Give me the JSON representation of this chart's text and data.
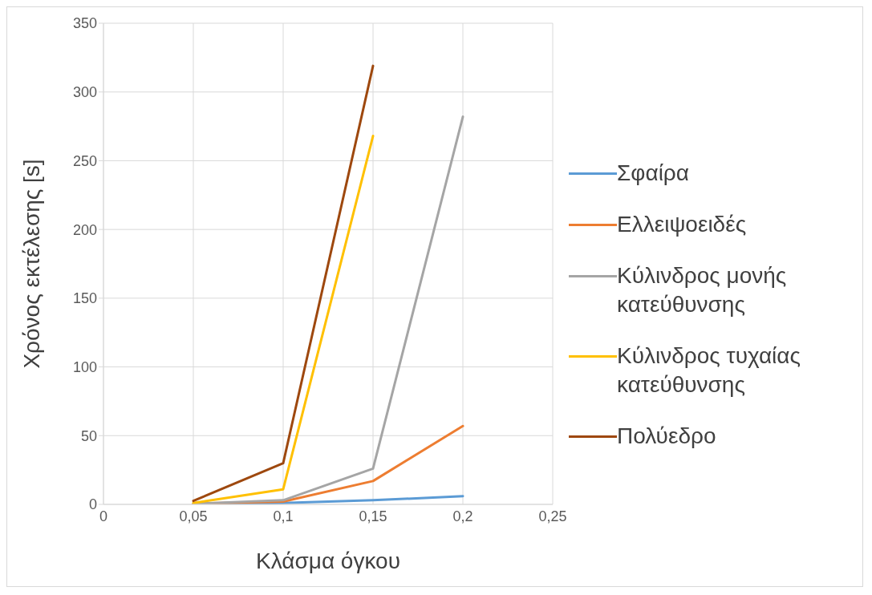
{
  "chart_data": {
    "type": "line",
    "xlabel": "Κλάσμα όγκου",
    "ylabel": "Χρόνος εκτέλεσης [s]",
    "x": [
      0.05,
      0.1,
      0.15,
      0.2
    ],
    "series": [
      {
        "name": "Σφαίρα",
        "color": "#5b9bd5",
        "values": [
          0.3,
          1,
          3,
          6
        ]
      },
      {
        "name": "Ελλειψοειδές",
        "color": "#ed7d31",
        "values": [
          0.5,
          2,
          17,
          57
        ]
      },
      {
        "name": "Κύλινδρος μονής κατεύθυνσης",
        "color": "#a5a5a5",
        "values": [
          0.5,
          3,
          26,
          282
        ]
      },
      {
        "name": "Κύλινδρος τυχαίας κατεύθυνσης",
        "color": "#ffc000",
        "values": [
          1,
          11,
          268,
          null
        ]
      },
      {
        "name": "Πολύεδρο",
        "color": "#9e480e",
        "values": [
          2.5,
          30,
          319,
          null
        ]
      }
    ],
    "xlim": [
      0,
      0.25
    ],
    "xticks": [
      0,
      {
        "value": 0.05,
        "label": "0,05"
      },
      {
        "value": 0.1,
        "label": "0,1"
      },
      {
        "value": 0.15,
        "label": "0,15"
      },
      {
        "value": 0.2,
        "label": "0,2"
      },
      {
        "value": 0.25,
        "label": "0,25"
      }
    ],
    "ylim": [
      0,
      350
    ],
    "yticks": [
      0,
      50,
      100,
      150,
      200,
      250,
      300,
      350
    ],
    "grid": true,
    "legend": "right",
    "marker": "none",
    "line_style": "solid"
  }
}
